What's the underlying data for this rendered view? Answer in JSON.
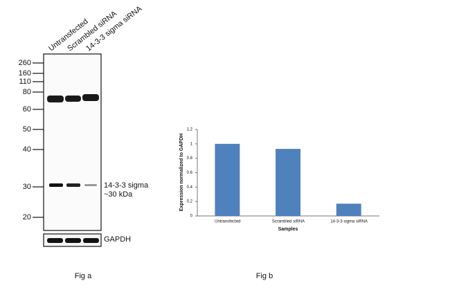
{
  "blot": {
    "lanes": [
      "Untransfected",
      "Scrambled siRNA",
      "14-3-3 sigma siRNA"
    ],
    "markers": [
      "260",
      "160",
      "110",
      "80",
      "60",
      "50",
      "40",
      "30",
      "20"
    ],
    "band_label": "14-3-3 sigma",
    "band_size": "~30 kDa",
    "control_label": "GAPDH",
    "caption": "Fig a"
  },
  "chart_data": {
    "type": "bar",
    "caption": "Fig b",
    "ylabel": "Expression normalized to GAPDH",
    "xlabel": "Samples",
    "categories": [
      "Untransfected",
      "Scrambled siRNA",
      "14-3-3 sigma siRNA"
    ],
    "values": [
      1,
      0.93,
      0.17
    ],
    "color": "#4f81bd",
    "ylim": [
      0,
      1.2
    ],
    "yticks": [
      0,
      0.2,
      0.4,
      0.6,
      0.8,
      1,
      1.2
    ],
    "grid": false
  }
}
